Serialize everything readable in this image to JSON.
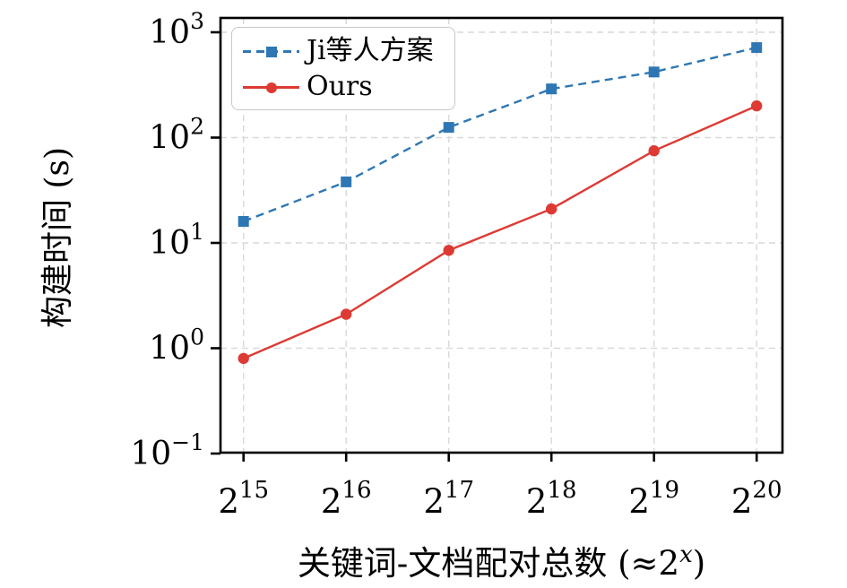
{
  "figure": {
    "ylabel": "构建时间 (s)",
    "xlabel_prefix": "关键词-文档配对总数 (≈2",
    "xlabel_sup": "x",
    "xlabel_suffix": ")",
    "xlabel_full": "关键词-文档配对总数 (≈2^x)"
  },
  "legend": {
    "position": "upper left",
    "items": [
      {
        "label": "Ji等人方案",
        "color": "#2e77b4",
        "line": "dashed",
        "marker": "square"
      },
      {
        "label": "Ours",
        "color": "#dd3a34",
        "line": "solid",
        "marker": "circle"
      }
    ]
  },
  "colors": {
    "series_blue": "#2e77b4",
    "series_red": "#dd3a34",
    "grid": "#d9d9d9",
    "axis": "#000000",
    "legend_border": "#c8c8c8",
    "background": "#ffffff"
  },
  "chart_data": {
    "type": "line",
    "title": "",
    "xlabel": "关键词-文档配对总数 (≈2^x)",
    "ylabel": "构建时间 (s)",
    "yscale": "log",
    "ylim": [
      0.1,
      1000
    ],
    "grid": true,
    "legend_position": "upper left",
    "x_exponents": [
      15,
      16,
      17,
      18,
      19,
      20
    ],
    "xticks": [
      {
        "base": "2",
        "exp": "15"
      },
      {
        "base": "2",
        "exp": "16"
      },
      {
        "base": "2",
        "exp": "17"
      },
      {
        "base": "2",
        "exp": "18"
      },
      {
        "base": "2",
        "exp": "19"
      },
      {
        "base": "2",
        "exp": "20"
      }
    ],
    "yticks": [
      {
        "base": "10",
        "exp": "3"
      },
      {
        "base": "10",
        "exp": "2"
      },
      {
        "base": "10",
        "exp": "1"
      },
      {
        "base": "10",
        "exp": "0"
      },
      {
        "base": "10",
        "exp": "−1"
      }
    ],
    "series": [
      {
        "name": "Ji等人方案",
        "color": "#2e77b4",
        "style": "dashed",
        "marker": "square",
        "values": [
          16,
          38,
          125,
          290,
          420,
          715
        ]
      },
      {
        "name": "Ours",
        "color": "#dd3a34",
        "style": "solid",
        "marker": "circle",
        "values": [
          0.8,
          2.1,
          8.5,
          21,
          75,
          200
        ]
      }
    ]
  }
}
